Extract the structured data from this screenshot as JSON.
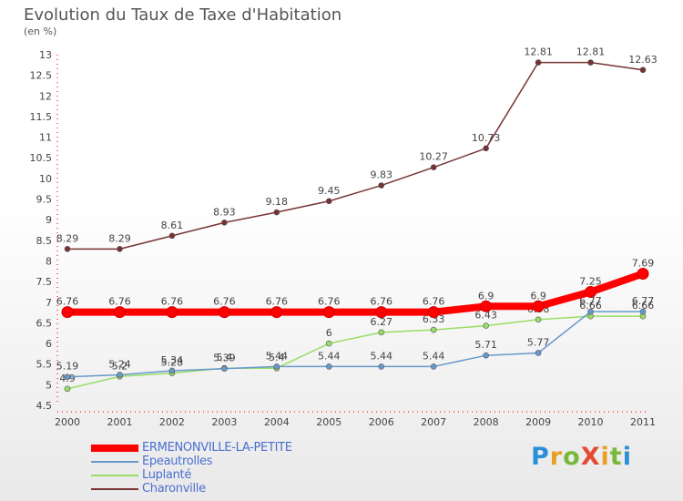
{
  "title": "Evolution du Taux de Taxe d'Habitation",
  "subtitle": "(en %)",
  "logo_text": "ProXiti",
  "chart_data": {
    "type": "line",
    "x": [
      2000,
      2001,
      2002,
      2003,
      2004,
      2005,
      2006,
      2007,
      2008,
      2009,
      2010,
      2011
    ],
    "ylim": [
      4.5,
      13
    ],
    "yticks": [
      "4.5",
      "5",
      "5.5",
      "6",
      "6.5",
      "7",
      "7.5",
      "8",
      "8.5",
      "9",
      "9.5",
      "10",
      "10.5",
      "11",
      "11.5",
      "12",
      "12.5",
      "13"
    ],
    "grid": false,
    "legend_position": "bottom-left",
    "series": [
      {
        "name": "ERMENONVILLE-LA-PETITE",
        "color": "#ff0000",
        "values": [
          6.76,
          6.76,
          6.76,
          6.76,
          6.76,
          6.76,
          6.76,
          6.76,
          6.9,
          6.9,
          7.25,
          7.69
        ],
        "labels": [
          "6.76",
          "6.76",
          "6.76",
          "6.76",
          "6.76",
          "6.76",
          "6.76",
          "6.76",
          "6.9",
          "6.9",
          "7.25",
          "7.69"
        ]
      },
      {
        "name": "Epeautrolles",
        "color": "#6699cc",
        "values": [
          5.19,
          5.24,
          5.34,
          5.39,
          5.44,
          5.44,
          5.44,
          5.44,
          5.71,
          5.77,
          6.77,
          6.77
        ],
        "labels": [
          "5.19",
          "5.24",
          "5.34",
          "5.39",
          "5.44",
          "5.44",
          "5.44",
          "5.44",
          "5.71",
          "5.77",
          "6.77",
          "6.77"
        ]
      },
      {
        "name": "Luplanté",
        "color": "#99dd66",
        "values": [
          4.9,
          5.2,
          5.28,
          5.4,
          5.4,
          6.0,
          6.27,
          6.33,
          6.43,
          6.58,
          6.66,
          6.66
        ],
        "labels": [
          "4.9",
          "5.2",
          "5.28",
          "5.4",
          "5.4",
          "6",
          "6.27",
          "6.33",
          "6.43",
          "6.58",
          "6.66",
          "6.66"
        ]
      },
      {
        "name": "Charonville",
        "color": "#773333",
        "values": [
          8.29,
          8.29,
          8.61,
          8.93,
          9.18,
          9.45,
          9.83,
          10.27,
          10.73,
          12.81,
          12.81,
          12.63
        ],
        "labels": [
          "8.29",
          "8.29",
          "8.61",
          "8.93",
          "9.18",
          "9.45",
          "9.83",
          "10.27",
          "10.73",
          "12.81",
          "12.81",
          "12.63"
        ]
      }
    ]
  }
}
